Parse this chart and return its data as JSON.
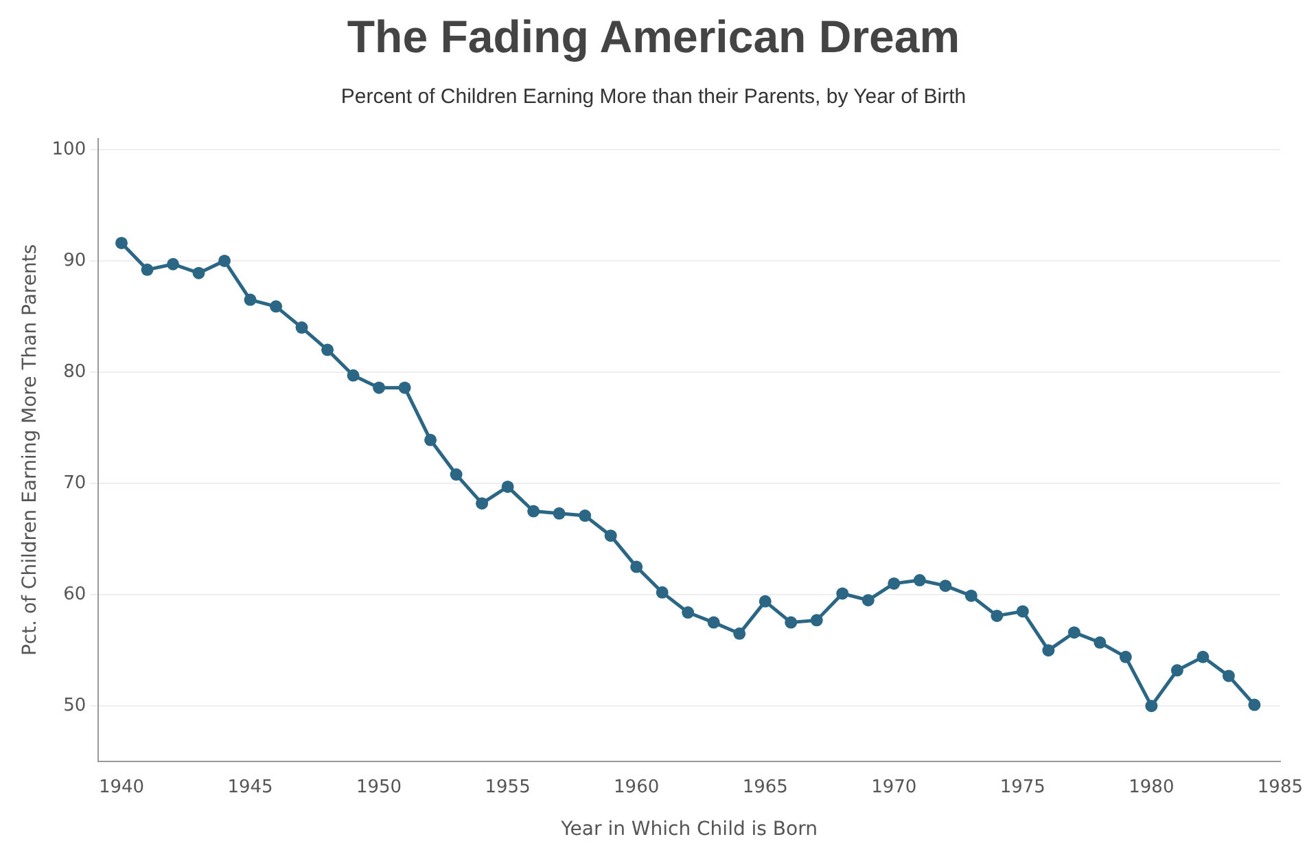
{
  "chart_data": {
    "type": "line",
    "title": "The Fading American Dream",
    "subtitle": "Percent of Children Earning More than their Parents, by Year of Birth",
    "xlabel": "Year in Which Child is Born",
    "ylabel": "Pct. of Children Earning More Than Parents",
    "x": [
      1940,
      1941,
      1942,
      1943,
      1944,
      1945,
      1946,
      1947,
      1948,
      1949,
      1950,
      1951,
      1952,
      1953,
      1954,
      1955,
      1956,
      1957,
      1958,
      1959,
      1960,
      1961,
      1962,
      1963,
      1964,
      1965,
      1966,
      1967,
      1968,
      1969,
      1970,
      1971,
      1972,
      1973,
      1974,
      1975,
      1976,
      1977,
      1978,
      1979,
      1980,
      1981,
      1982,
      1983,
      1984
    ],
    "series": [
      {
        "color": "#2b6785",
        "values": [
          91.6,
          89.2,
          89.7,
          88.9,
          90.0,
          86.5,
          85.9,
          84.0,
          82.0,
          79.7,
          78.6,
          78.6,
          73.9,
          70.8,
          68.2,
          69.7,
          67.5,
          67.3,
          67.1,
          65.3,
          62.5,
          60.2,
          58.4,
          57.5,
          56.5,
          59.4,
          57.5,
          57.7,
          60.1,
          59.5,
          61.0,
          61.3,
          60.8,
          59.9,
          58.1,
          58.5,
          55.0,
          56.6,
          55.7,
          54.4,
          50.0,
          53.2,
          54.4,
          52.7,
          50.1
        ]
      }
    ],
    "xlim": [
      1939.1,
      1985
    ],
    "xticks": [
      1940,
      1945,
      1950,
      1955,
      1960,
      1965,
      1970,
      1975,
      1980,
      1985
    ],
    "ylim": [
      45,
      101
    ],
    "yticks": [
      50,
      60,
      70,
      80,
      90,
      100
    ],
    "grid": "y",
    "marker": "circle",
    "line_style": "solid",
    "legend": false
  }
}
